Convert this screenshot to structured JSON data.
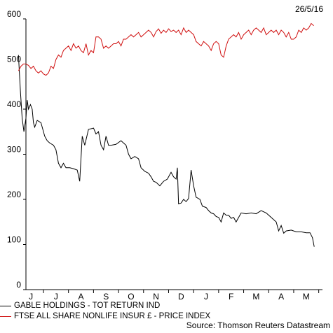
{
  "chart_data": {
    "type": "line",
    "date_stamp": "26/5/16",
    "ylim": [
      0,
      600
    ],
    "y_ticks": [
      "0",
      "100",
      "200",
      "300",
      "400",
      "500",
      "600"
    ],
    "x_ticks": [
      "J",
      "J",
      "A",
      "S",
      "O",
      "N",
      "D",
      "J",
      "F",
      "M",
      "A",
      "M"
    ],
    "x_tick_positions": [
      0.2,
      1.2,
      2.2,
      3.2,
      4.2,
      5.2,
      6.2,
      7.2,
      8.2,
      9.2,
      10.2,
      11.2
    ],
    "x_range": [
      0,
      11.85
    ],
    "grid": false,
    "legend_position": "bottom",
    "source": "Source: Thomson Reuters Datastream",
    "series": [
      {
        "name": "GABLE HOLDINGS - TOT RETURN IND",
        "color": "#000000",
        "values": [
          [
            -0.3,
            520
          ],
          [
            -0.22,
            440
          ],
          [
            -0.15,
            380
          ],
          [
            -0.08,
            350
          ],
          [
            0.0,
            380
          ],
          [
            0.05,
            420
          ],
          [
            0.1,
            400
          ],
          [
            0.18,
            410
          ],
          [
            0.25,
            400
          ],
          [
            0.3,
            370
          ],
          [
            0.35,
            360
          ],
          [
            0.45,
            375
          ],
          [
            0.6,
            370
          ],
          [
            0.75,
            340
          ],
          [
            0.85,
            330
          ],
          [
            0.95,
            325
          ],
          [
            1.1,
            320
          ],
          [
            1.2,
            310
          ],
          [
            1.3,
            280
          ],
          [
            1.4,
            270
          ],
          [
            1.5,
            280
          ],
          [
            1.6,
            270
          ],
          [
            1.75,
            270
          ],
          [
            1.9,
            268
          ],
          [
            2.05,
            265
          ],
          [
            2.15,
            240
          ],
          [
            2.25,
            340
          ],
          [
            2.35,
            320
          ],
          [
            2.5,
            355
          ],
          [
            2.7,
            358
          ],
          [
            2.8,
            345
          ],
          [
            2.9,
            350
          ],
          [
            3.0,
            320
          ],
          [
            3.1,
            310
          ],
          [
            3.2,
            340
          ],
          [
            3.3,
            320
          ],
          [
            3.4,
            320
          ],
          [
            3.6,
            322
          ],
          [
            3.8,
            330
          ],
          [
            4.0,
            320
          ],
          [
            4.1,
            300
          ],
          [
            4.2,
            290
          ],
          [
            4.35,
            295
          ],
          [
            4.5,
            290
          ],
          [
            4.6,
            270
          ],
          [
            4.75,
            262
          ],
          [
            4.9,
            258
          ],
          [
            5.0,
            250
          ],
          [
            5.1,
            240
          ],
          [
            5.2,
            238
          ],
          [
            5.35,
            230
          ],
          [
            5.5,
            240
          ],
          [
            5.65,
            245
          ],
          [
            5.8,
            260
          ],
          [
            5.9,
            250
          ],
          [
            6.0,
            245
          ],
          [
            6.05,
            270
          ],
          [
            6.1,
            190
          ],
          [
            6.2,
            192
          ],
          [
            6.3,
            200
          ],
          [
            6.4,
            195
          ],
          [
            6.5,
            202
          ],
          [
            6.6,
            265
          ],
          [
            6.7,
            230
          ],
          [
            6.8,
            205
          ],
          [
            6.95,
            200
          ],
          [
            7.05,
            185
          ],
          [
            7.2,
            182
          ],
          [
            7.3,
            175
          ],
          [
            7.4,
            170
          ],
          [
            7.5,
            168
          ],
          [
            7.6,
            162
          ],
          [
            7.7,
            160
          ],
          [
            7.8,
            150
          ],
          [
            7.9,
            170
          ],
          [
            8.0,
            165
          ],
          [
            8.1,
            165
          ],
          [
            8.2,
            158
          ],
          [
            8.3,
            160
          ],
          [
            8.4,
            150
          ],
          [
            8.5,
            160
          ],
          [
            8.6,
            170
          ],
          [
            8.8,
            168
          ],
          [
            9.0,
            170
          ],
          [
            9.2,
            168
          ],
          [
            9.4,
            175
          ],
          [
            9.6,
            170
          ],
          [
            9.8,
            160
          ],
          [
            10.0,
            150
          ],
          [
            10.1,
            130
          ],
          [
            10.2,
            142
          ],
          [
            10.3,
            125
          ],
          [
            10.4,
            130
          ],
          [
            10.6,
            132
          ],
          [
            10.8,
            128
          ],
          [
            11.0,
            128
          ],
          [
            11.2,
            126
          ],
          [
            11.35,
            126
          ],
          [
            11.45,
            115
          ],
          [
            11.52,
            95
          ]
        ]
      },
      {
        "name": "FTSE ALL SHARE NONLIFE INSUR £ - PRICE INDEX",
        "color": "#d01010",
        "values": [
          [
            -0.3,
            485
          ],
          [
            -0.2,
            495
          ],
          [
            -0.1,
            500
          ],
          [
            0.0,
            500
          ],
          [
            0.1,
            497
          ],
          [
            0.2,
            490
          ],
          [
            0.3,
            495
          ],
          [
            0.4,
            485
          ],
          [
            0.5,
            480
          ],
          [
            0.6,
            485
          ],
          [
            0.7,
            478
          ],
          [
            0.8,
            475
          ],
          [
            0.9,
            480
          ],
          [
            1.0,
            495
          ],
          [
            1.1,
            490
          ],
          [
            1.2,
            510
          ],
          [
            1.3,
            520
          ],
          [
            1.4,
            515
          ],
          [
            1.5,
            530
          ],
          [
            1.6,
            535
          ],
          [
            1.7,
            540
          ],
          [
            1.8,
            530
          ],
          [
            1.9,
            545
          ],
          [
            2.0,
            535
          ],
          [
            2.1,
            540
          ],
          [
            2.2,
            530
          ],
          [
            2.3,
            525
          ],
          [
            2.4,
            545
          ],
          [
            2.5,
            520
          ],
          [
            2.6,
            530
          ],
          [
            2.7,
            525
          ],
          [
            2.8,
            560
          ],
          [
            2.9,
            560
          ],
          [
            3.0,
            555
          ],
          [
            3.1,
            535
          ],
          [
            3.2,
            540
          ],
          [
            3.3,
            535
          ],
          [
            3.4,
            540
          ],
          [
            3.5,
            545
          ],
          [
            3.6,
            545
          ],
          [
            3.7,
            550
          ],
          [
            3.8,
            540
          ],
          [
            3.9,
            555
          ],
          [
            4.0,
            555
          ],
          [
            4.1,
            560
          ],
          [
            4.2,
            565
          ],
          [
            4.3,
            560
          ],
          [
            4.4,
            565
          ],
          [
            4.5,
            570
          ],
          [
            4.6,
            560
          ],
          [
            4.7,
            565
          ],
          [
            4.8,
            570
          ],
          [
            4.9,
            575
          ],
          [
            5.0,
            570
          ],
          [
            5.1,
            560
          ],
          [
            5.2,
            572
          ],
          [
            5.3,
            578
          ],
          [
            5.4,
            568
          ],
          [
            5.5,
            575
          ],
          [
            5.6,
            570
          ],
          [
            5.7,
            578
          ],
          [
            5.8,
            572
          ],
          [
            5.9,
            575
          ],
          [
            6.0,
            570
          ],
          [
            6.1,
            575
          ],
          [
            6.2,
            565
          ],
          [
            6.3,
            580
          ],
          [
            6.4,
            570
          ],
          [
            6.5,
            575
          ],
          [
            6.6,
            570
          ],
          [
            6.7,
            565
          ],
          [
            6.8,
            550
          ],
          [
            6.9,
            545
          ],
          [
            7.0,
            540
          ],
          [
            7.1,
            550
          ],
          [
            7.2,
            545
          ],
          [
            7.3,
            540
          ],
          [
            7.4,
            530
          ],
          [
            7.5,
            545
          ],
          [
            7.6,
            550
          ],
          [
            7.7,
            545
          ],
          [
            7.8,
            520
          ],
          [
            7.9,
            515
          ],
          [
            8.0,
            540
          ],
          [
            8.1,
            555
          ],
          [
            8.2,
            560
          ],
          [
            8.3,
            565
          ],
          [
            8.4,
            560
          ],
          [
            8.5,
            570
          ],
          [
            8.6,
            555
          ],
          [
            8.7,
            565
          ],
          [
            8.8,
            570
          ],
          [
            8.9,
            575
          ],
          [
            9.0,
            565
          ],
          [
            9.1,
            575
          ],
          [
            9.2,
            580
          ],
          [
            9.3,
            575
          ],
          [
            9.4,
            570
          ],
          [
            9.5,
            580
          ],
          [
            9.6,
            565
          ],
          [
            9.7,
            570
          ],
          [
            9.8,
            575
          ],
          [
            9.9,
            570
          ],
          [
            10.0,
            575
          ],
          [
            10.1,
            565
          ],
          [
            10.2,
            575
          ],
          [
            10.3,
            570
          ],
          [
            10.4,
            560
          ],
          [
            10.5,
            570
          ],
          [
            10.6,
            555
          ],
          [
            10.7,
            555
          ],
          [
            10.8,
            560
          ],
          [
            10.9,
            575
          ],
          [
            11.0,
            570
          ],
          [
            11.1,
            580
          ],
          [
            11.2,
            575
          ],
          [
            11.3,
            580
          ],
          [
            11.4,
            590
          ],
          [
            11.5,
            585
          ]
        ]
      }
    ]
  }
}
